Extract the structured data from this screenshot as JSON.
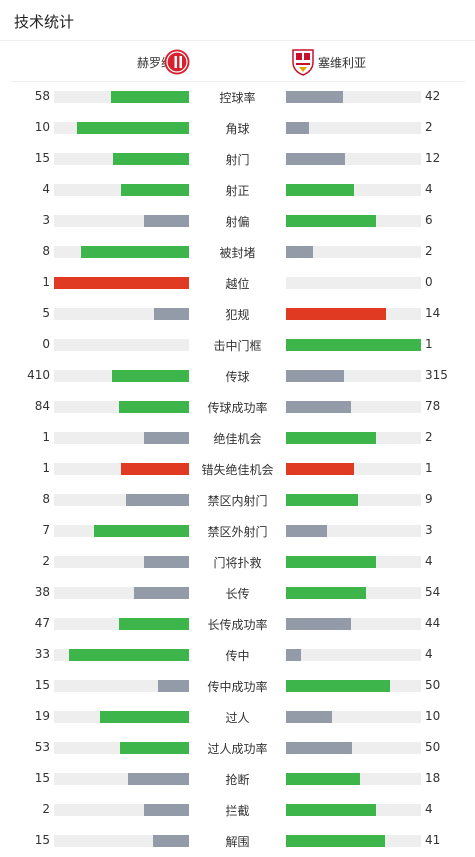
{
  "header": {
    "title": "技术统计"
  },
  "teams": {
    "home": "赫罗纳",
    "away": "塞维利亚"
  },
  "colors": {
    "better": "#3db54a",
    "worse": "#939ba9",
    "card": "#e03a22",
    "track": "#eeeeee"
  },
  "stats": [
    {
      "label": "控球率",
      "home": "58",
      "away": "42",
      "home_ratio": 0.58,
      "away_ratio": 0.42,
      "home_color": "better",
      "away_color": "worse"
    },
    {
      "label": "角球",
      "home": "10",
      "away": "2",
      "home_ratio": 0.83,
      "away_ratio": 0.17,
      "home_color": "better",
      "away_color": "worse"
    },
    {
      "label": "射门",
      "home": "15",
      "away": "12",
      "home_ratio": 0.56,
      "away_ratio": 0.44,
      "home_color": "better",
      "away_color": "worse"
    },
    {
      "label": "射正",
      "home": "4",
      "away": "4",
      "home_ratio": 0.5,
      "away_ratio": 0.5,
      "home_color": "better",
      "away_color": "better"
    },
    {
      "label": "射偏",
      "home": "3",
      "away": "6",
      "home_ratio": 0.33,
      "away_ratio": 0.67,
      "home_color": "worse",
      "away_color": "better"
    },
    {
      "label": "被封堵",
      "home": "8",
      "away": "2",
      "home_ratio": 0.8,
      "away_ratio": 0.2,
      "home_color": "better",
      "away_color": "worse"
    },
    {
      "label": "越位",
      "home": "1",
      "away": "0",
      "home_ratio": 1.0,
      "away_ratio": 0.0,
      "home_color": "card",
      "away_color": "worse"
    },
    {
      "label": "犯规",
      "home": "5",
      "away": "14",
      "home_ratio": 0.26,
      "away_ratio": 0.74,
      "home_color": "worse",
      "away_color": "card"
    },
    {
      "label": "击中门框",
      "home": "0",
      "away": "1",
      "home_ratio": 0.0,
      "away_ratio": 1.0,
      "home_color": "worse",
      "away_color": "better"
    },
    {
      "label": "传球",
      "home": "410",
      "away": "315",
      "home_ratio": 0.57,
      "away_ratio": 0.43,
      "home_color": "better",
      "away_color": "worse"
    },
    {
      "label": "传球成功率",
      "home": "84",
      "away": "78",
      "home_ratio": 0.52,
      "away_ratio": 0.48,
      "home_color": "better",
      "away_color": "worse"
    },
    {
      "label": "绝佳机会",
      "home": "1",
      "away": "2",
      "home_ratio": 0.33,
      "away_ratio": 0.67,
      "home_color": "worse",
      "away_color": "better"
    },
    {
      "label": "错失绝佳机会",
      "home": "1",
      "away": "1",
      "home_ratio": 0.5,
      "away_ratio": 0.5,
      "home_color": "card",
      "away_color": "card"
    },
    {
      "label": "禁区内射门",
      "home": "8",
      "away": "9",
      "home_ratio": 0.47,
      "away_ratio": 0.53,
      "home_color": "worse",
      "away_color": "better"
    },
    {
      "label": "禁区外射门",
      "home": "7",
      "away": "3",
      "home_ratio": 0.7,
      "away_ratio": 0.3,
      "home_color": "better",
      "away_color": "worse"
    },
    {
      "label": "门将扑救",
      "home": "2",
      "away": "4",
      "home_ratio": 0.33,
      "away_ratio": 0.67,
      "home_color": "worse",
      "away_color": "better"
    },
    {
      "label": "长传",
      "home": "38",
      "away": "54",
      "home_ratio": 0.41,
      "away_ratio": 0.59,
      "home_color": "worse",
      "away_color": "better"
    },
    {
      "label": "长传成功率",
      "home": "47",
      "away": "44",
      "home_ratio": 0.52,
      "away_ratio": 0.48,
      "home_color": "better",
      "away_color": "worse"
    },
    {
      "label": "传中",
      "home": "33",
      "away": "4",
      "home_ratio": 0.89,
      "away_ratio": 0.11,
      "home_color": "better",
      "away_color": "worse"
    },
    {
      "label": "传中成功率",
      "home": "15",
      "away": "50",
      "home_ratio": 0.23,
      "away_ratio": 0.77,
      "home_color": "worse",
      "away_color": "better"
    },
    {
      "label": "过人",
      "home": "19",
      "away": "10",
      "home_ratio": 0.66,
      "away_ratio": 0.34,
      "home_color": "better",
      "away_color": "worse"
    },
    {
      "label": "过人成功率",
      "home": "53",
      "away": "50",
      "home_ratio": 0.51,
      "away_ratio": 0.49,
      "home_color": "better",
      "away_color": "worse"
    },
    {
      "label": "抢断",
      "home": "15",
      "away": "18",
      "home_ratio": 0.45,
      "away_ratio": 0.55,
      "home_color": "worse",
      "away_color": "better"
    },
    {
      "label": "拦截",
      "home": "2",
      "away": "4",
      "home_ratio": 0.33,
      "away_ratio": 0.67,
      "home_color": "worse",
      "away_color": "better"
    },
    {
      "label": "解围",
      "home": "15",
      "away": "41",
      "home_ratio": 0.27,
      "away_ratio": 0.73,
      "home_color": "worse",
      "away_color": "better"
    }
  ]
}
